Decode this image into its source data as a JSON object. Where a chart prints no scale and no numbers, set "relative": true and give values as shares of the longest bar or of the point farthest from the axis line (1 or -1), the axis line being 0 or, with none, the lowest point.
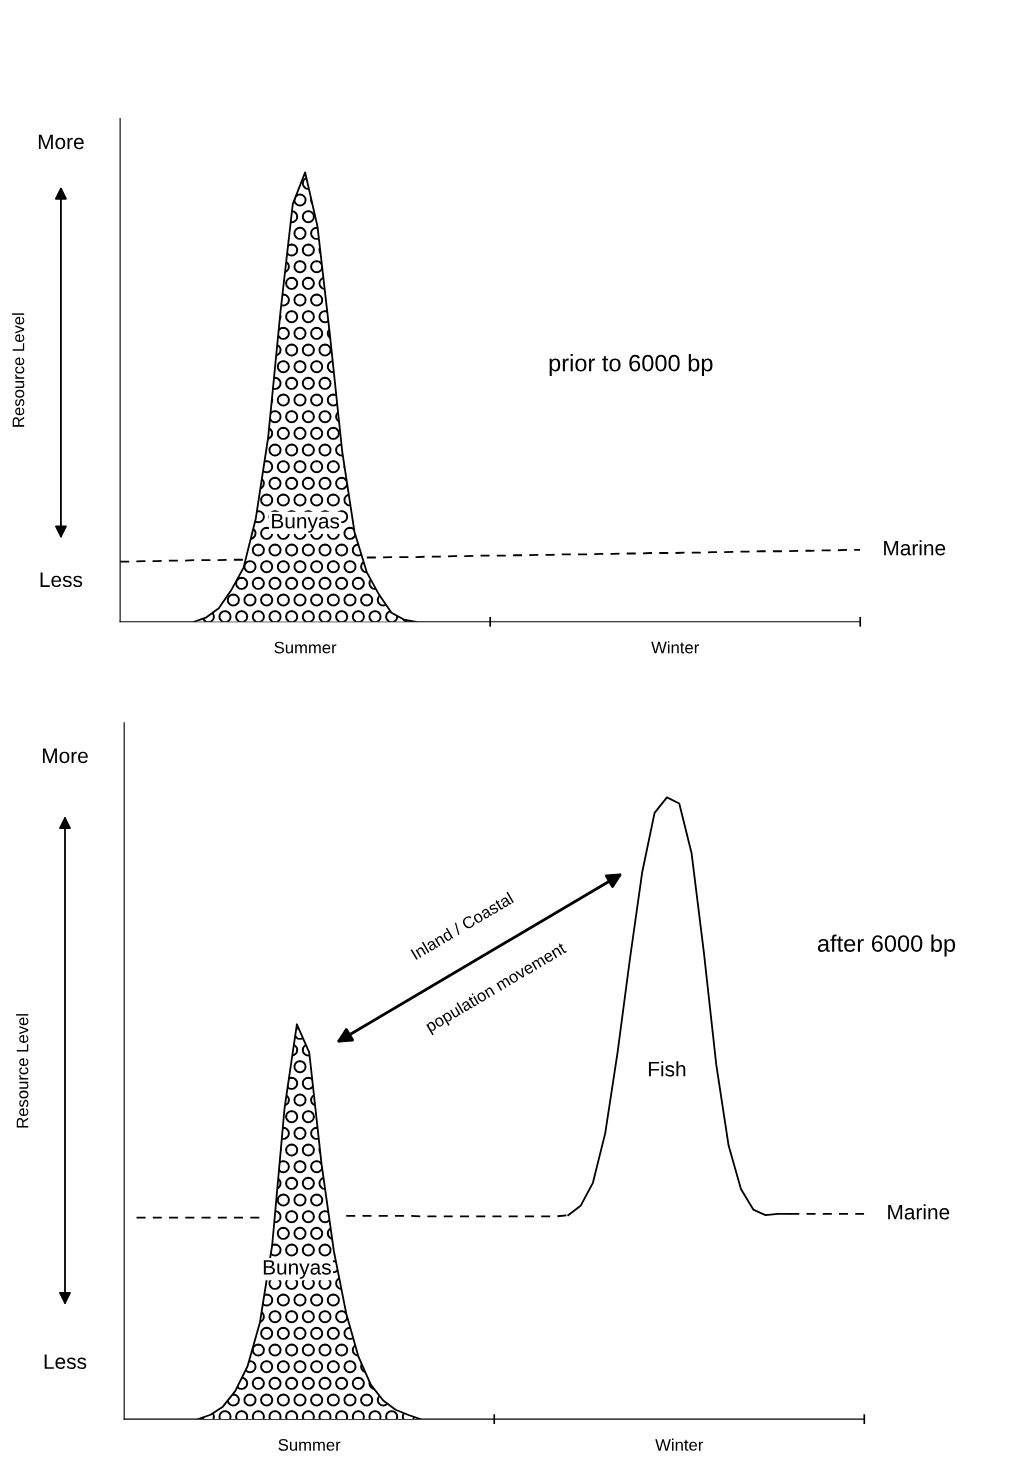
{
  "chart_data": [
    {
      "type": "line",
      "relative": true,
      "title": "prior to 6000 bp",
      "ylabel": "Resource Level",
      "categories": [
        null,
        null,
        null,
        null,
        null,
        null,
        null,
        null,
        null,
        null,
        null,
        null,
        null,
        null,
        null,
        "Summer",
        null,
        null,
        null,
        null,
        null,
        null,
        null,
        null,
        null,
        null,
        null,
        null,
        null,
        null,
        null,
        null,
        null,
        null,
        null,
        null,
        null,
        null,
        null,
        null,
        null,
        null,
        null,
        null,
        null,
        "Winter",
        null,
        null,
        null,
        null,
        null,
        null,
        null,
        null,
        null,
        null,
        null,
        null,
        null,
        null,
        null
      ],
      "annotations": [
        "More",
        "Less"
      ],
      "series": [
        {
          "name": "Marine",
          "line_style": "dashed",
          "color": "#000000",
          "values": [
            0.134,
            0.134,
            0.135,
            0.135,
            0.136,
            0.136,
            0.137,
            0.137,
            0.137,
            0.138,
            0.138,
            null,
            null,
            null,
            null,
            null,
            null,
            null,
            null,
            null,
            0.143,
            0.143,
            0.144,
            0.144,
            0.144,
            0.145,
            0.145,
            0.146,
            0.146,
            0.147,
            0.147,
            0.147,
            0.148,
            0.148,
            0.149,
            0.149,
            0.15,
            0.15,
            0.15,
            0.151,
            0.151,
            0.152,
            0.152,
            0.153,
            0.153,
            0.153,
            0.154,
            0.154,
            0.155,
            0.155,
            0.156,
            0.156,
            0.157,
            0.157,
            0.157,
            0.158,
            0.158,
            0.159,
            0.159,
            0.16,
            0.16
          ]
        },
        {
          "name": "Bunyas",
          "type": "area",
          "color": "#000000",
          "values": [
            null,
            null,
            null,
            null,
            null,
            null,
            0,
            0.01,
            0.03,
            0.07,
            0.12,
            0.23,
            0.41,
            0.69,
            0.93,
            1.0,
            0.88,
            0.64,
            0.38,
            0.2,
            0.11,
            0.06,
            0.02,
            0.005,
            0,
            null,
            null,
            null,
            null,
            null,
            null,
            null,
            null,
            null,
            null,
            null,
            null,
            null,
            null,
            null,
            null,
            null,
            null,
            null,
            null,
            null,
            null,
            null,
            null,
            null,
            null,
            null,
            null,
            null,
            null,
            null,
            null,
            null,
            null,
            null,
            null
          ]
        }
      ]
    },
    {
      "type": "line",
      "relative": true,
      "title": "after 6000 bp",
      "ylabel": "Resource Level",
      "categories": [
        null,
        null,
        null,
        null,
        null,
        null,
        null,
        null,
        null,
        null,
        null,
        null,
        null,
        null,
        null,
        "Summer",
        null,
        null,
        null,
        null,
        null,
        null,
        null,
        null,
        null,
        null,
        null,
        null,
        null,
        null,
        null,
        null,
        null,
        null,
        null,
        null,
        null,
        null,
        null,
        null,
        null,
        null,
        null,
        null,
        null,
        "Winter",
        null,
        null,
        null,
        null,
        null,
        null,
        null,
        null,
        null,
        null,
        null,
        null,
        null,
        null,
        null
      ],
      "annotations": [
        "More",
        "Less",
        "Inland / Coastal",
        "population movement"
      ],
      "series": [
        {
          "name": "Marine",
          "line_style": "dashed",
          "color": "#000000",
          "values": [
            null,
            0.324,
            0.324,
            0.324,
            0.324,
            0.324,
            0.324,
            0.324,
            0.324,
            0.324,
            0.324,
            0.324,
            null,
            null,
            null,
            null,
            null,
            null,
            0.327,
            0.327,
            0.327,
            0.327,
            0.327,
            0.327,
            0.326,
            0.326,
            0.326,
            0.326,
            0.326,
            0.326,
            0.326,
            0.326,
            0.326,
            0.326,
            0.326,
            0.326,
            0.328,
            null,
            null,
            null,
            null,
            null,
            null,
            null,
            null,
            null,
            null,
            null,
            null,
            null,
            null,
            null,
            null,
            null,
            0.33,
            0.33,
            0.33,
            0.33,
            0.33,
            0.33,
            0.33
          ]
        },
        {
          "name": "Bunyas",
          "type": "area",
          "color": "#000000",
          "values": [
            null,
            null,
            null,
            null,
            null,
            null,
            0,
            0.007,
            0.02,
            0.045,
            0.085,
            0.155,
            0.28,
            0.5,
            0.635,
            0.59,
            0.41,
            0.27,
            0.17,
            0.1,
            0.055,
            0.03,
            0.015,
            0.007,
            0,
            null,
            null,
            null,
            null,
            null,
            null,
            null,
            null,
            null,
            null,
            null,
            null,
            null,
            null,
            null,
            null,
            null,
            null,
            null,
            null,
            null,
            null,
            null,
            null,
            null,
            null,
            null,
            null,
            null,
            null,
            null,
            null,
            null,
            null,
            null,
            null
          ]
        },
        {
          "name": "Fish",
          "line_style": "solid",
          "color": "#000000",
          "values": [
            null,
            null,
            null,
            null,
            null,
            null,
            null,
            null,
            null,
            null,
            null,
            null,
            null,
            null,
            null,
            null,
            null,
            null,
            null,
            null,
            null,
            null,
            null,
            null,
            null,
            null,
            null,
            null,
            null,
            null,
            null,
            null,
            null,
            null,
            null,
            null,
            0.328,
            0.343,
            0.38,
            0.46,
            0.59,
            0.74,
            0.88,
            0.975,
            1.0,
            0.99,
            0.91,
            0.75,
            0.57,
            0.44,
            0.37,
            0.337,
            0.328,
            0.33,
            0.33,
            null,
            null,
            null,
            null,
            null,
            null
          ]
        }
      ]
    }
  ]
}
